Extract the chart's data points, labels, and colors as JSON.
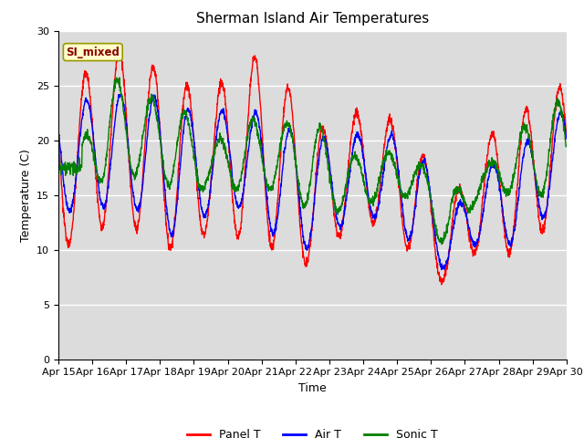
{
  "title": "Sherman Island Air Temperatures",
  "xlabel": "Time",
  "ylabel": "Temperature (C)",
  "ylim": [
    0,
    30
  ],
  "xlim": [
    0,
    15
  ],
  "x_tick_labels": [
    "Apr 15",
    "Apr 16",
    "Apr 17",
    "Apr 18",
    "Apr 19",
    "Apr 20",
    "Apr 21",
    "Apr 22",
    "Apr 23",
    "Apr 24",
    "Apr 25",
    "Apr 26",
    "Apr 27",
    "Apr 28",
    "Apr 29",
    "Apr 30"
  ],
  "yticks": [
    0,
    5,
    10,
    15,
    20,
    25,
    30
  ],
  "bg_color": "#dcdcdc",
  "label_box_text": "SI_mixed",
  "label_box_facecolor": "#ffffcc",
  "label_box_edgecolor": "#999900",
  "label_box_textcolor": "#8b0000",
  "line_colors": [
    "red",
    "blue",
    "green"
  ],
  "line_labels": [
    "Panel T",
    "Air T",
    "Sonic T"
  ],
  "line_width": 1.0,
  "title_fontsize": 11,
  "tick_fontsize": 8,
  "axis_label_fontsize": 9
}
